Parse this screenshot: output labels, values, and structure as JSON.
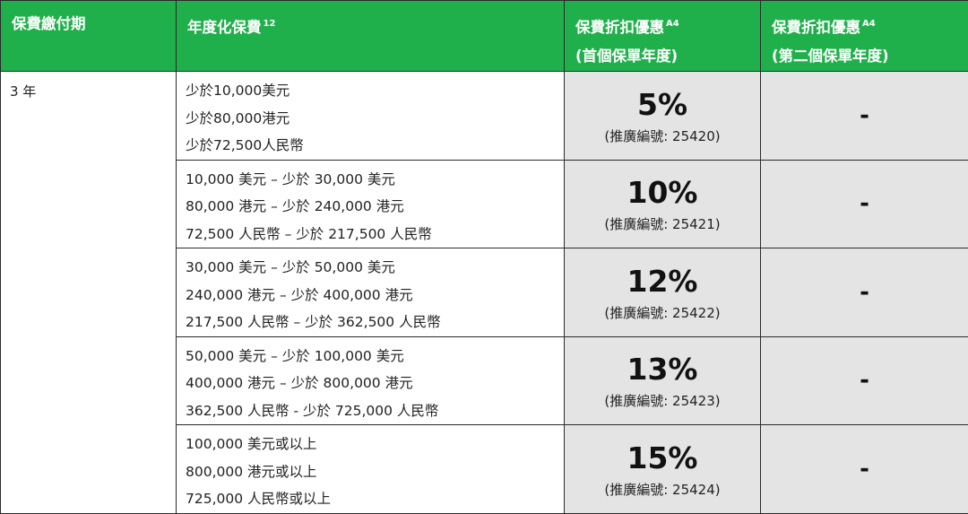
{
  "header": {
    "period": "保費繳付期",
    "premium": "年度化保費",
    "premium_sup": "12",
    "discount1_line1": "保費折扣優惠",
    "discount1_sup": "A4",
    "discount1_line2": "(首個保單年度)",
    "discount2_line1": "保費折扣優惠",
    "discount2_sup": "A4",
    "discount2_line2": "(第二個保單年度)"
  },
  "period_value": "3 年",
  "rows": [
    {
      "lines": [
        "少於10,000美元",
        "少於80,000港元",
        "少於72,500人民幣"
      ],
      "discount": "5%",
      "promo": "(推廣編號: 25420)",
      "discount2": "-"
    },
    {
      "lines": [
        "10,000 美元 – 少於 30,000 美元",
        "80,000 港元 – 少於 240,000 港元",
        "72,500 人民幣 – 少於 217,500 人民幣"
      ],
      "discount": "10%",
      "promo": "(推廣編號: 25421)",
      "discount2": "-"
    },
    {
      "lines": [
        "30,000 美元 – 少於 50,000 美元",
        "240,000 港元 – 少於 400,000 港元",
        "217,500 人民幣 – 少於 362,500 人民幣"
      ],
      "discount": "12%",
      "promo": "(推廣編號: 25422)",
      "discount2": "-"
    },
    {
      "lines": [
        "50,000 美元 – 少於 100,000 美元",
        "400,000 港元 – 少於 800,000 港元",
        "362,500 人民幣 - 少於 725,000 人民幣"
      ],
      "discount": "13%",
      "promo": "(推廣編號: 25423)",
      "discount2": "-"
    },
    {
      "lines": [
        "100,000 美元或以上",
        "800,000 港元或以上",
        "725,000 人民幣或以上"
      ],
      "discount": "15%",
      "promo": "(推廣編號: 25424)",
      "discount2": "-"
    }
  ],
  "colors": {
    "header_bg": "#20b04b",
    "discount_bg": "#e4e4e4"
  }
}
